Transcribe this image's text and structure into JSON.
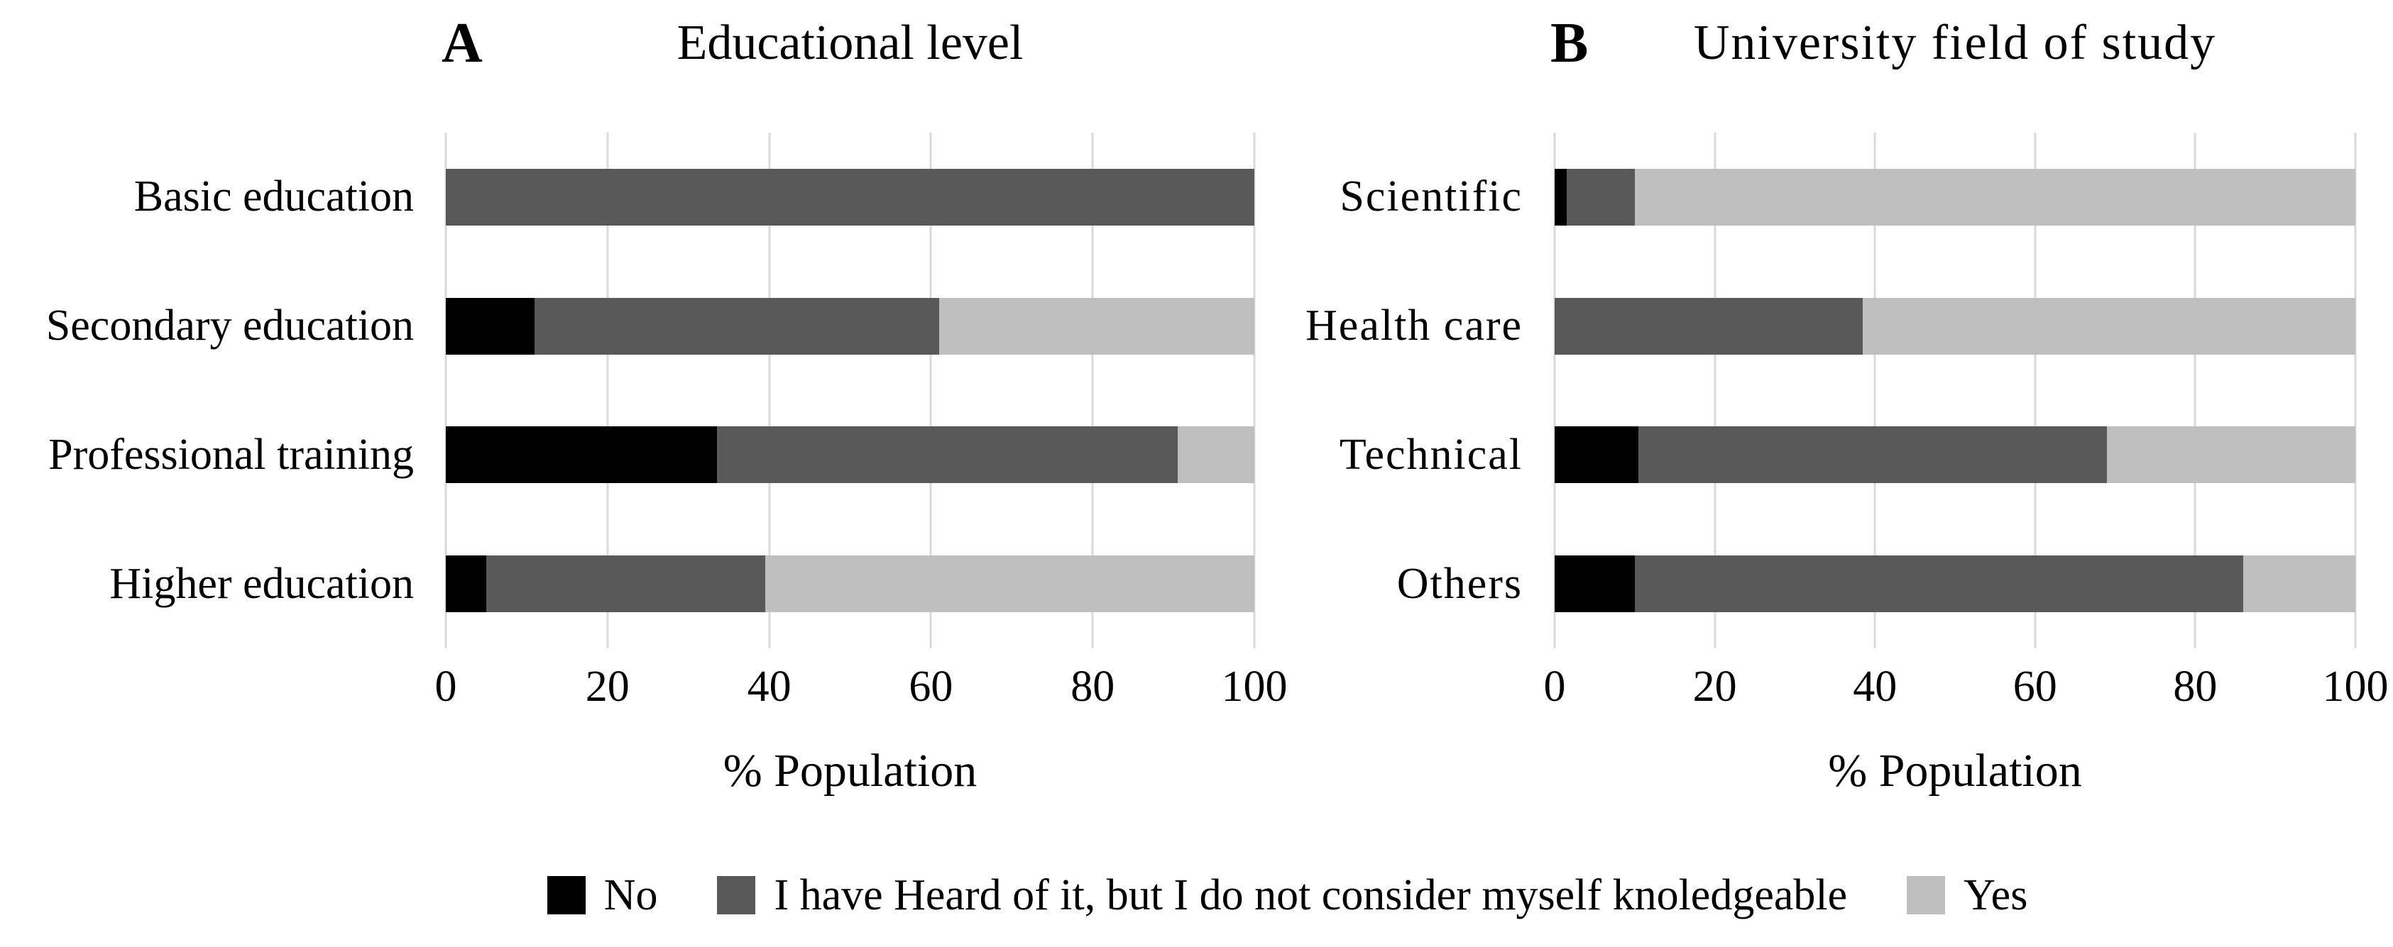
{
  "figure": {
    "background": "#ffffff",
    "grid_color": "#d9d9d9",
    "legend": {
      "position": "bottom",
      "items": [
        {
          "label": "No",
          "color": "#000000"
        },
        {
          "label": "I have Heard of it, but I do not consider myself knoledgeable",
          "color": "#595959"
        },
        {
          "label": "Yes",
          "color": "#bfbfbf"
        }
      ]
    }
  },
  "chart_data": [
    {
      "type": "bar",
      "orientation": "horizontal",
      "stacked": true,
      "panel_letter": "A",
      "title": "Educational level",
      "xlabel": "% Population",
      "xlim": [
        0,
        100
      ],
      "xticks": [
        0,
        20,
        40,
        60,
        80,
        100
      ],
      "grid": true,
      "legend_position": "bottom-shared",
      "categories": [
        "Basic education",
        "Secondary education",
        "Professional training",
        "Higher education"
      ],
      "series": [
        {
          "name": "No",
          "color": "#000000",
          "values": [
            0,
            11,
            33.5,
            5
          ]
        },
        {
          "name": "I have Heard of it, but I do not consider myself knoledgeable",
          "color": "#595959",
          "values": [
            100,
            50,
            57,
            34.5
          ]
        },
        {
          "name": "Yes",
          "color": "#bfbfbf",
          "values": [
            0,
            39,
            9.5,
            60.5
          ]
        }
      ]
    },
    {
      "type": "bar",
      "orientation": "horizontal",
      "stacked": true,
      "panel_letter": "B",
      "title": "University field of study",
      "xlabel": "% Population",
      "xlim": [
        0,
        100
      ],
      "xticks": [
        0,
        20,
        40,
        60,
        80,
        100
      ],
      "grid": true,
      "legend_position": "bottom-shared",
      "categories": [
        "Scientific",
        "Health care",
        "Technical",
        "Others"
      ],
      "series": [
        {
          "name": "No",
          "color": "#000000",
          "values": [
            1.5,
            0,
            10.5,
            10
          ]
        },
        {
          "name": "I have Heard of it, but I do not consider myself knoledgeable",
          "color": "#595959",
          "values": [
            8.5,
            38.5,
            58.5,
            76
          ]
        },
        {
          "name": "Yes",
          "color": "#bfbfbf",
          "values": [
            90,
            61.5,
            31,
            14
          ]
        }
      ]
    }
  ]
}
